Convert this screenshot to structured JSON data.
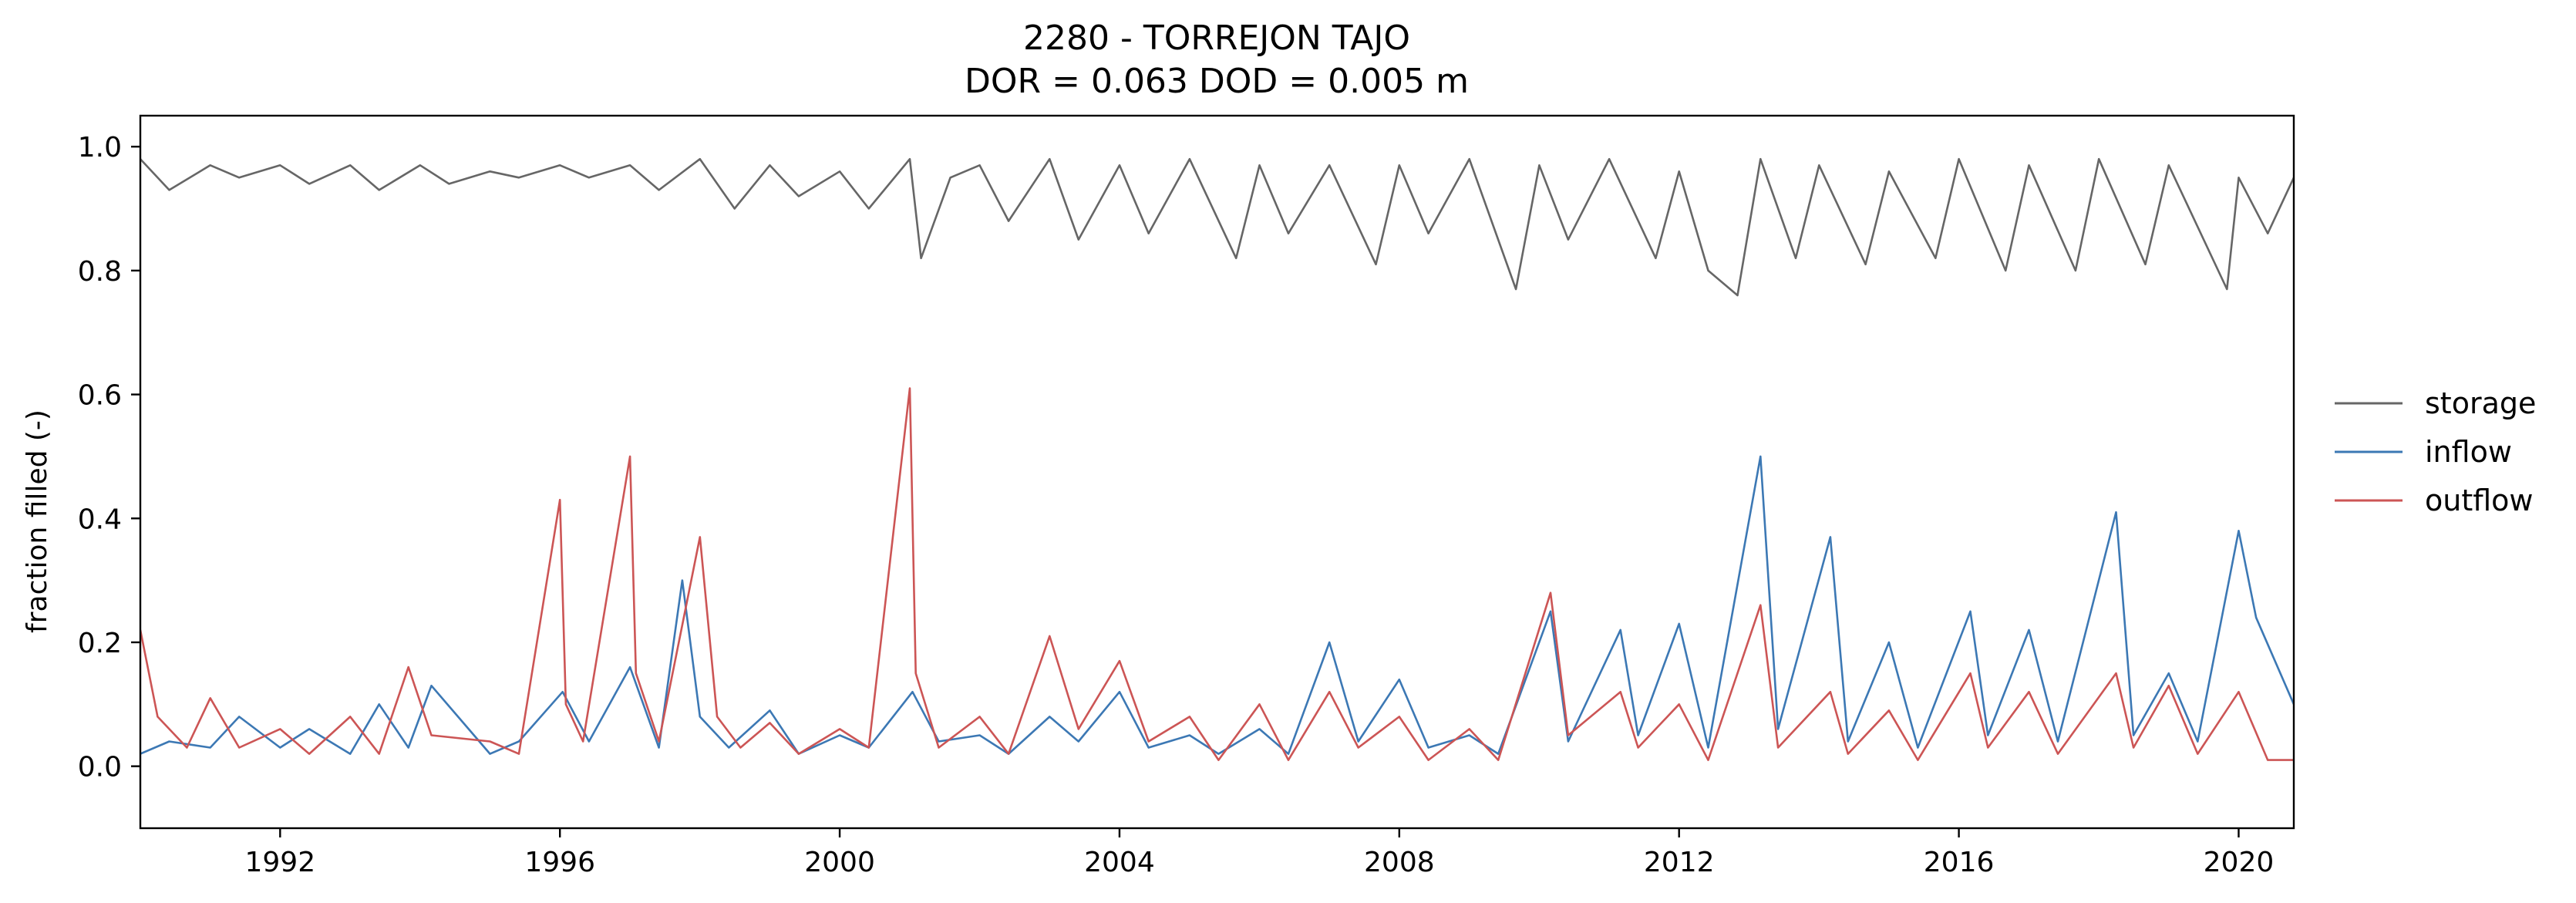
{
  "chart_data": {
    "type": "line",
    "title": "2280 - TORREJON TAJO",
    "subtitle": "DOR = 0.063  DOD = 0.005 m",
    "xlabel": "",
    "ylabel": "fraction filled (-)",
    "xlim": [
      "1990-01-01",
      "2020-10-15"
    ],
    "ylim": [
      -0.1,
      1.05
    ],
    "xticks": [
      "1992",
      "1996",
      "2000",
      "2004",
      "2008",
      "2012",
      "2016",
      "2020"
    ],
    "yticks": [
      "0.0",
      "0.2",
      "0.4",
      "0.6",
      "0.8",
      "1.0"
    ],
    "grid": false,
    "legend_position": "right, outside plot",
    "series": [
      {
        "name": "storage",
        "color": "#666666",
        "x": [
          "1990-01-01",
          "1990-06-01",
          "1991-01-01",
          "1991-06-01",
          "1992-01-01",
          "1992-06-01",
          "1993-01-01",
          "1993-06-01",
          "1994-01-01",
          "1994-06-01",
          "1995-01-01",
          "1995-06-01",
          "1996-01-01",
          "1996-06-01",
          "1997-01-01",
          "1997-06-01",
          "1998-01-01",
          "1998-07-01",
          "1999-01-01",
          "1999-06-01",
          "2000-01-01",
          "2000-06-01",
          "2001-01-01",
          "2001-03-01",
          "2001-08-01",
          "2002-01-01",
          "2002-06-01",
          "2003-01-01",
          "2003-06-01",
          "2004-01-01",
          "2004-06-01",
          "2005-01-01",
          "2005-09-01",
          "2006-01-01",
          "2006-06-01",
          "2007-01-01",
          "2007-09-01",
          "2008-01-01",
          "2008-06-01",
          "2009-01-01",
          "2009-09-01",
          "2010-01-01",
          "2010-06-01",
          "2011-01-01",
          "2011-09-01",
          "2012-01-01",
          "2012-06-01",
          "2012-11-01",
          "2013-03-01",
          "2013-09-01",
          "2014-01-01",
          "2014-09-01",
          "2015-01-01",
          "2015-09-01",
          "2016-01-01",
          "2016-09-01",
          "2017-01-01",
          "2017-09-01",
          "2018-01-01",
          "2018-09-01",
          "2019-01-01",
          "2019-11-01",
          "2020-01-01",
          "2020-06-01",
          "2020-10-15"
        ],
        "values": [
          0.98,
          0.93,
          0.97,
          0.95,
          0.97,
          0.94,
          0.97,
          0.93,
          0.97,
          0.94,
          0.96,
          0.95,
          0.97,
          0.95,
          0.97,
          0.93,
          0.98,
          0.9,
          0.97,
          0.92,
          0.96,
          0.9,
          0.98,
          0.82,
          0.95,
          0.97,
          0.88,
          0.98,
          0.85,
          0.97,
          0.86,
          0.98,
          0.82,
          0.97,
          0.86,
          0.97,
          0.81,
          0.97,
          0.86,
          0.98,
          0.77,
          0.97,
          0.85,
          0.98,
          0.82,
          0.96,
          0.8,
          0.76,
          0.98,
          0.82,
          0.97,
          0.81,
          0.96,
          0.82,
          0.98,
          0.8,
          0.97,
          0.8,
          0.98,
          0.81,
          0.97,
          0.77,
          0.95,
          0.86,
          0.95
        ]
      },
      {
        "name": "inflow",
        "color": "#3c78b4",
        "x": [
          "1990-01-01",
          "1990-06-01",
          "1991-01-01",
          "1991-06-01",
          "1992-01-01",
          "1992-06-01",
          "1993-01-01",
          "1993-06-01",
          "1993-11-01",
          "1994-03-01",
          "1995-01-01",
          "1995-06-01",
          "1996-01-15",
          "1996-06-01",
          "1997-01-01",
          "1997-06-01",
          "1997-10-01",
          "1998-01-01",
          "1998-06-01",
          "1999-01-01",
          "1999-06-01",
          "2000-01-01",
          "2000-06-01",
          "2001-01-15",
          "2001-06-01",
          "2002-01-01",
          "2002-06-01",
          "2003-01-01",
          "2003-06-01",
          "2004-01-01",
          "2004-06-01",
          "2005-01-01",
          "2005-06-01",
          "2006-01-01",
          "2006-06-01",
          "2007-01-01",
          "2007-06-01",
          "2008-01-01",
          "2008-06-01",
          "2009-01-01",
          "2009-06-01",
          "2010-03-01",
          "2010-06-01",
          "2011-03-01",
          "2011-06-01",
          "2012-01-01",
          "2012-06-01",
          "2013-03-01",
          "2013-06-01",
          "2014-03-01",
          "2014-06-01",
          "2015-01-01",
          "2015-06-01",
          "2016-03-01",
          "2016-06-01",
          "2017-01-01",
          "2017-06-01",
          "2018-04-01",
          "2018-07-01",
          "2019-01-01",
          "2019-06-01",
          "2020-01-01",
          "2020-04-01",
          "2020-10-15"
        ],
        "values": [
          0.02,
          0.04,
          0.03,
          0.08,
          0.03,
          0.06,
          0.02,
          0.1,
          0.03,
          0.13,
          0.02,
          0.04,
          0.12,
          0.04,
          0.16,
          0.03,
          0.3,
          0.08,
          0.03,
          0.09,
          0.02,
          0.05,
          0.03,
          0.12,
          0.04,
          0.05,
          0.02,
          0.08,
          0.04,
          0.12,
          0.03,
          0.05,
          0.02,
          0.06,
          0.02,
          0.2,
          0.04,
          0.14,
          0.03,
          0.05,
          0.02,
          0.25,
          0.04,
          0.22,
          0.05,
          0.23,
          0.03,
          0.5,
          0.06,
          0.37,
          0.04,
          0.2,
          0.03,
          0.25,
          0.05,
          0.22,
          0.04,
          0.41,
          0.05,
          0.15,
          0.04,
          0.38,
          0.24,
          0.1
        ]
      },
      {
        "name": "outflow",
        "color": "#cc5555",
        "x": [
          "1990-01-01",
          "1990-04-01",
          "1990-09-01",
          "1991-01-01",
          "1991-06-01",
          "1992-01-01",
          "1992-06-01",
          "1993-01-01",
          "1993-06-01",
          "1993-11-01",
          "1994-03-01",
          "1995-01-01",
          "1995-06-01",
          "1996-01-01",
          "1996-02-01",
          "1996-05-01",
          "1997-01-01",
          "1997-02-01",
          "1997-06-01",
          "1998-01-01",
          "1998-04-01",
          "1998-08-01",
          "1999-01-01",
          "1999-06-01",
          "2000-01-01",
          "2000-06-01",
          "2001-01-01",
          "2001-02-01",
          "2001-06-01",
          "2002-01-01",
          "2002-06-01",
          "2003-01-01",
          "2003-06-01",
          "2004-01-01",
          "2004-06-01",
          "2005-01-01",
          "2005-06-01",
          "2006-01-01",
          "2006-06-01",
          "2007-01-01",
          "2007-06-01",
          "2008-01-01",
          "2008-06-01",
          "2009-01-01",
          "2009-06-01",
          "2010-03-01",
          "2010-06-01",
          "2011-03-01",
          "2011-06-01",
          "2012-01-01",
          "2012-06-01",
          "2013-03-01",
          "2013-06-01",
          "2014-03-01",
          "2014-06-01",
          "2015-01-01",
          "2015-06-01",
          "2016-03-01",
          "2016-06-01",
          "2017-01-01",
          "2017-06-01",
          "2018-04-01",
          "2018-07-01",
          "2019-01-01",
          "2019-06-01",
          "2020-01-01",
          "2020-06-01",
          "2020-10-15"
        ],
        "values": [
          0.22,
          0.08,
          0.03,
          0.11,
          0.03,
          0.06,
          0.02,
          0.08,
          0.02,
          0.16,
          0.05,
          0.04,
          0.02,
          0.43,
          0.1,
          0.04,
          0.5,
          0.15,
          0.04,
          0.37,
          0.08,
          0.03,
          0.07,
          0.02,
          0.06,
          0.03,
          0.61,
          0.15,
          0.03,
          0.08,
          0.02,
          0.21,
          0.06,
          0.17,
          0.04,
          0.08,
          0.01,
          0.1,
          0.01,
          0.12,
          0.03,
          0.08,
          0.01,
          0.06,
          0.01,
          0.28,
          0.05,
          0.12,
          0.03,
          0.1,
          0.01,
          0.26,
          0.03,
          0.12,
          0.02,
          0.09,
          0.01,
          0.15,
          0.03,
          0.12,
          0.02,
          0.15,
          0.03,
          0.13,
          0.02,
          0.12,
          0.01,
          0.01
        ]
      }
    ]
  }
}
